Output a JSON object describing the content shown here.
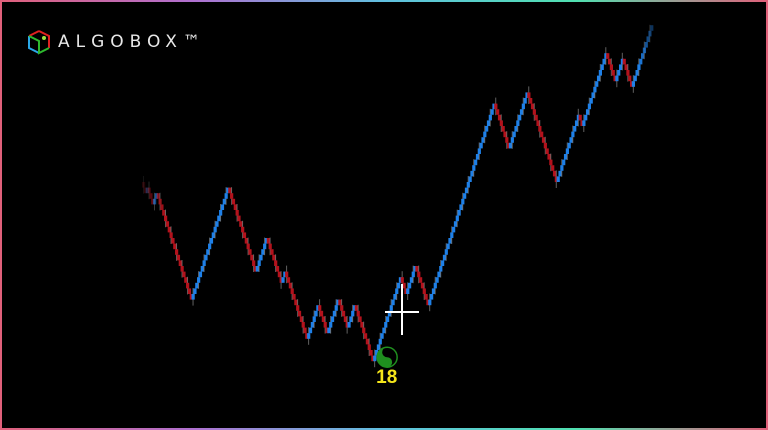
{
  "logo": {
    "text": "ALGOBOX™",
    "colors": [
      "#e02020",
      "#2aa8e8",
      "#2eb82e",
      "#9be040"
    ]
  },
  "chart_data": {
    "type": "renko",
    "title": "",
    "start_level": 0,
    "moves": [
      -2,
      1,
      -3,
      2,
      -19,
      20,
      -15,
      6,
      -8,
      2,
      -12,
      6,
      -5,
      6,
      -5,
      4,
      -10,
      15,
      -3,
      5,
      -7,
      36,
      -8,
      10,
      -16,
      12,
      -2,
      13,
      -5,
      4,
      -5,
      11
    ],
    "colors": {
      "up": "#1e80e8",
      "down": "#b3121c",
      "wick": "#8a8a8a"
    },
    "signal": {
      "icon": "yin-yang-icon",
      "label": "18",
      "color": "#1f8f1f",
      "label_color": "#f5e61a",
      "after_move": 16
    },
    "crosshair": true,
    "axes": false,
    "grid": false
  }
}
